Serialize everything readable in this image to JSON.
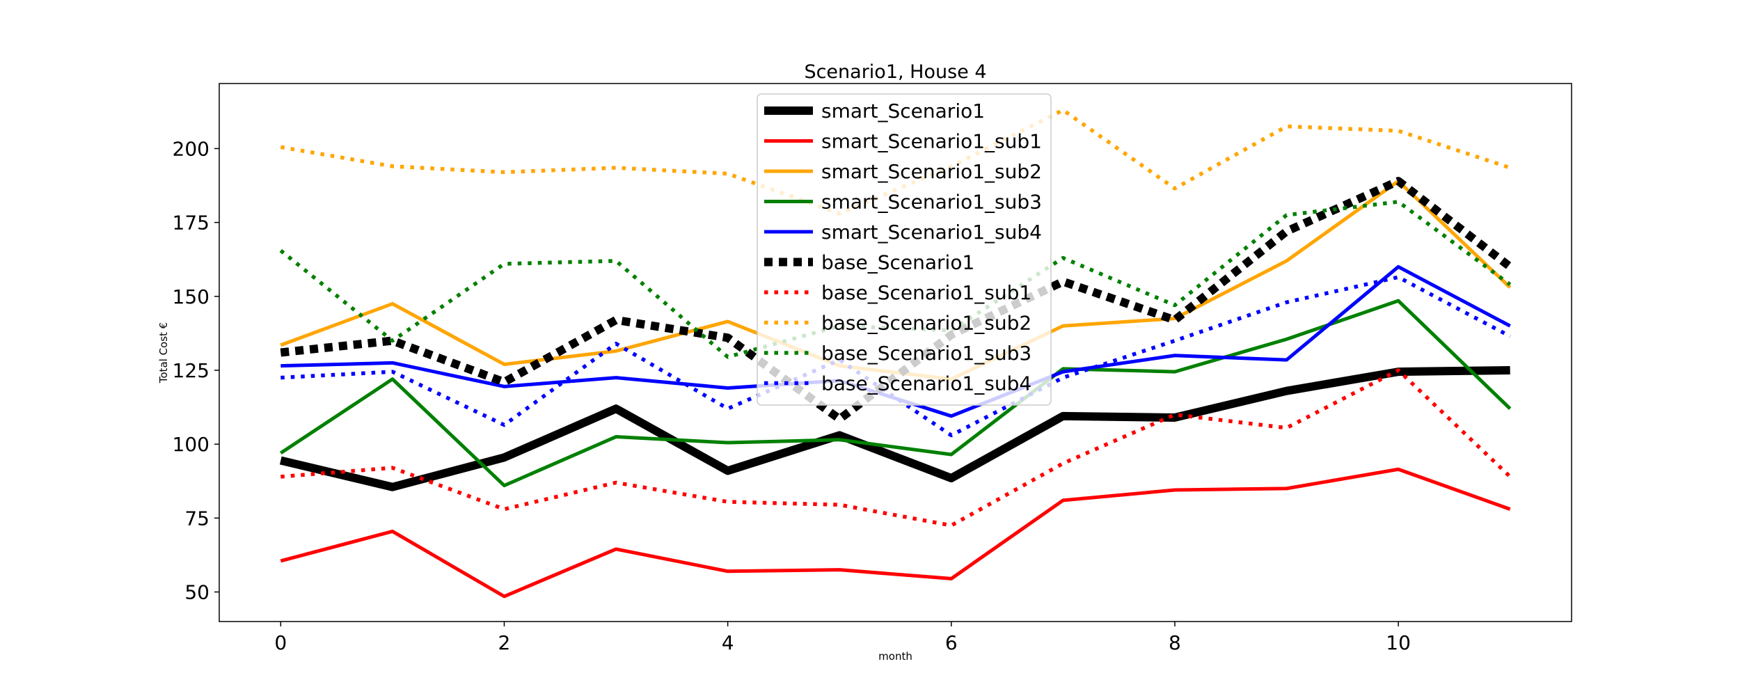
{
  "chart_data": {
    "type": "line",
    "title": "Scenario1, House 4",
    "xlabel": "month",
    "ylabel": "Total Cost €",
    "x": [
      0,
      1,
      2,
      3,
      4,
      5,
      6,
      7,
      8,
      9,
      10,
      11
    ],
    "xlim": [
      -0.55,
      11.55
    ],
    "ylim": [
      40,
      222
    ],
    "xticks": [
      0,
      2,
      4,
      6,
      8,
      10
    ],
    "yticks": [
      50,
      75,
      100,
      125,
      150,
      175,
      200
    ],
    "grid": false,
    "legend_position": "upper center",
    "series": [
      {
        "name": "smart_Scenario1",
        "color": "#000000",
        "style": "solid",
        "weight": "heavy",
        "values": [
          94.5,
          85.5,
          95.5,
          112,
          91,
          103,
          88.5,
          109.5,
          109,
          118,
          124.5,
          125
        ]
      },
      {
        "name": "smart_Scenario1_sub1",
        "color": "#ff0000",
        "style": "solid",
        "weight": "normal",
        "values": [
          60.5,
          70.5,
          48.5,
          64.5,
          57,
          57.5,
          54.5,
          81,
          84.5,
          85,
          91.5,
          78
        ]
      },
      {
        "name": "smart_Scenario1_sub2",
        "color": "#ffa500",
        "style": "solid",
        "weight": "normal",
        "values": [
          133.5,
          147.5,
          127,
          131.5,
          141.5,
          126.5,
          122,
          140,
          142.5,
          162,
          189,
          153
        ]
      },
      {
        "name": "smart_Scenario1_sub3",
        "color": "#008000",
        "style": "solid",
        "weight": "normal",
        "values": [
          97,
          122,
          86,
          102.5,
          100.5,
          101.5,
          96.5,
          125.5,
          124.5,
          135.5,
          148.5,
          112
        ]
      },
      {
        "name": "smart_Scenario1_sub4",
        "color": "#0000ff",
        "style": "solid",
        "weight": "normal",
        "values": [
          126.5,
          127.5,
          119.5,
          122.5,
          119,
          121.5,
          109.5,
          124.5,
          130,
          128.5,
          160,
          140
        ]
      },
      {
        "name": "base_Scenario1",
        "color": "#000000",
        "style": "dotted",
        "weight": "heavy",
        "values": [
          131,
          135,
          121,
          142,
          136,
          108.5,
          137,
          155,
          142,
          172,
          189,
          160
        ]
      },
      {
        "name": "base_Scenario1_sub1",
        "color": "#ff0000",
        "style": "dotted",
        "weight": "normal",
        "values": [
          89,
          92,
          78,
          87,
          80.5,
          79.5,
          72.5,
          93.5,
          110,
          105.5,
          125,
          89
        ]
      },
      {
        "name": "base_Scenario1_sub2",
        "color": "#ffa500",
        "style": "dotted",
        "weight": "normal",
        "values": [
          200.5,
          194,
          192,
          193.5,
          191.5,
          178,
          194,
          213,
          186.5,
          207.5,
          206,
          193.5
        ]
      },
      {
        "name": "base_Scenario1_sub3",
        "color": "#008000",
        "style": "dotted",
        "weight": "normal",
        "values": [
          165.5,
          135,
          161,
          162,
          129.5,
          140,
          138.5,
          163,
          147,
          177.5,
          182,
          154
        ]
      },
      {
        "name": "base_Scenario1_sub4",
        "color": "#0000ff",
        "style": "dotted",
        "weight": "normal",
        "values": [
          122.5,
          124.5,
          106.5,
          134,
          112,
          128.5,
          103,
          122.5,
          135,
          148,
          156.5,
          136.5
        ]
      }
    ]
  }
}
